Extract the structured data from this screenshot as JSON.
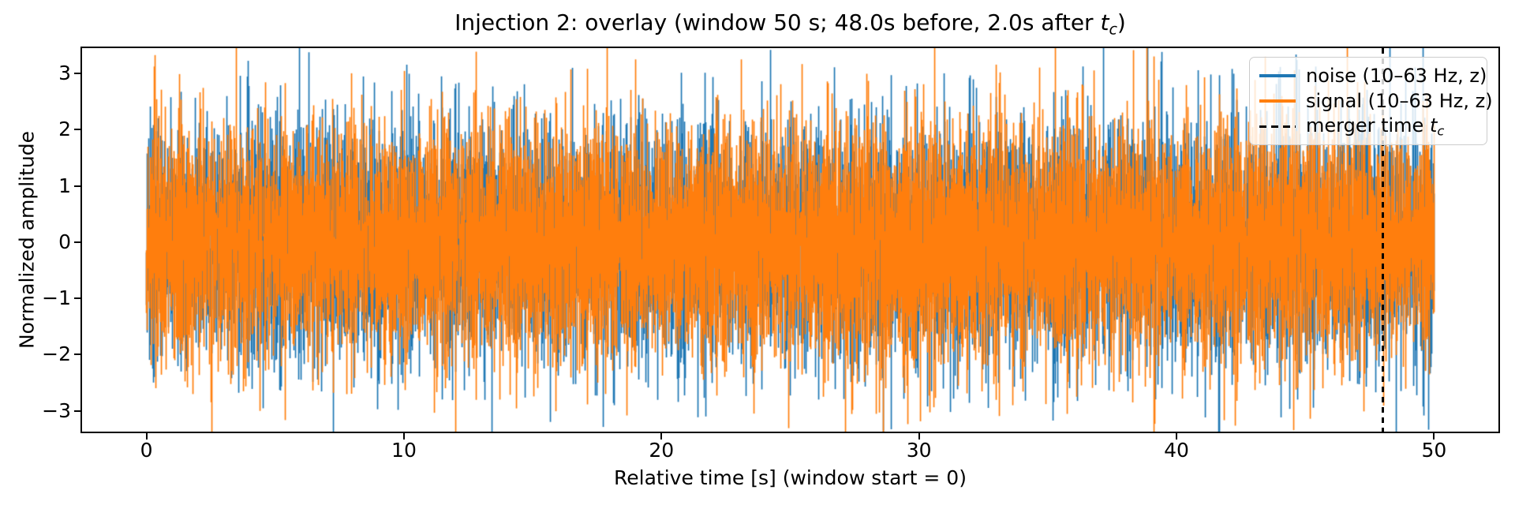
{
  "figure": {
    "background": "#ffffff"
  },
  "title_parts": {
    "prefix": "Injection 2: overlay (window 50 s; 48.0s before, 2.0s after ",
    "math_var": "t",
    "math_sub": "c",
    "suffix": ")"
  },
  "legend": {
    "position": "upper right",
    "items": [
      {
        "label": "noise (10–63 Hz, z)",
        "color": "#1f77b4",
        "style": "solid"
      },
      {
        "label": "signal (10–63 Hz, z)",
        "color": "#ff7f0e",
        "style": "solid"
      },
      {
        "label_prefix": "merger time ",
        "math_var": "t",
        "math_sub": "c",
        "color": "#000000",
        "style": "dashed"
      }
    ]
  },
  "chart_data": {
    "type": "line",
    "title": "Injection 2: overlay (window 50 s; 48.0s before, 2.0s after t_c)",
    "xlabel": "Relative time [s] (window start = 0)",
    "ylabel": "Normalized amplitude",
    "xlim": [
      -2.5,
      52.5
    ],
    "ylim": [
      -3.37,
      3.45
    ],
    "xticks": [
      0,
      10,
      20,
      30,
      40,
      50
    ],
    "xtick_labels": [
      "0",
      "10",
      "20",
      "30",
      "40",
      "50"
    ],
    "yticks": [
      3,
      2,
      1,
      0,
      -1,
      -2,
      -3
    ],
    "ytick_labels": [
      "3",
      "2",
      "1",
      "0",
      "−1",
      "−2",
      "−3"
    ],
    "grid": false,
    "legend_position": "upper right",
    "series": [
      {
        "name": "noise (10–63 Hz, z)",
        "color": "#1f77b4",
        "kind": "band-limited gaussian noise, z-scored",
        "band_hz": [
          10,
          63
        ],
        "duration_s": 50,
        "amplitude_range": [
          -3.1,
          3.1
        ]
      },
      {
        "name": "signal (10–63 Hz, z)",
        "color": "#ff7f0e",
        "kind": "band-limited gaussian noise with injected signal, z-scored",
        "band_hz": [
          10,
          63
        ],
        "duration_s": 50,
        "amplitude_range": [
          -3.1,
          3.1
        ]
      }
    ],
    "annotations": [
      {
        "type": "vline",
        "x": 48.0,
        "label": "merger time t_c",
        "color": "#000000",
        "linestyle": "dashed"
      }
    ],
    "window_s": 50,
    "before_s": 48.0,
    "after_s": 2.0
  }
}
